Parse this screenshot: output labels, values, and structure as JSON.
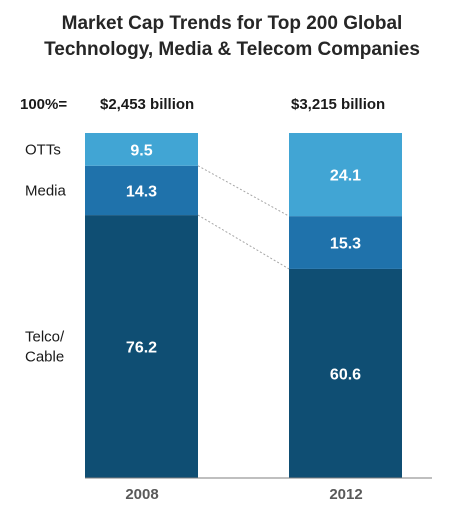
{
  "chart_data": {
    "type": "bar",
    "stacked": true,
    "normalized": true,
    "title": "Market Cap Trends for Top 200 Global Technology, Media & Telecom Companies",
    "title_lines": [
      "Market Cap Trends for Top 200 Global",
      "Technology, Media & Telecom Companies"
    ],
    "total_prefix": "100%=",
    "categories": [
      "2008",
      "2012"
    ],
    "totals": [
      "$2,453 billion",
      "$3,215 billion"
    ],
    "series": [
      {
        "name": "Telco/ Cable",
        "label_lines": [
          "Telco/",
          "Cable"
        ],
        "values": [
          76.2,
          60.6
        ],
        "color": "#0f4e73"
      },
      {
        "name": "Media",
        "label_lines": [
          "Media"
        ],
        "values": [
          14.3,
          15.3
        ],
        "color": "#1f72ab"
      },
      {
        "name": "OTTs",
        "label_lines": [
          "OTTs"
        ],
        "values": [
          9.5,
          24.1
        ],
        "color": "#41a5d4"
      }
    ],
    "ylim": [
      0,
      100
    ],
    "grid": false,
    "legend": "left labels"
  }
}
